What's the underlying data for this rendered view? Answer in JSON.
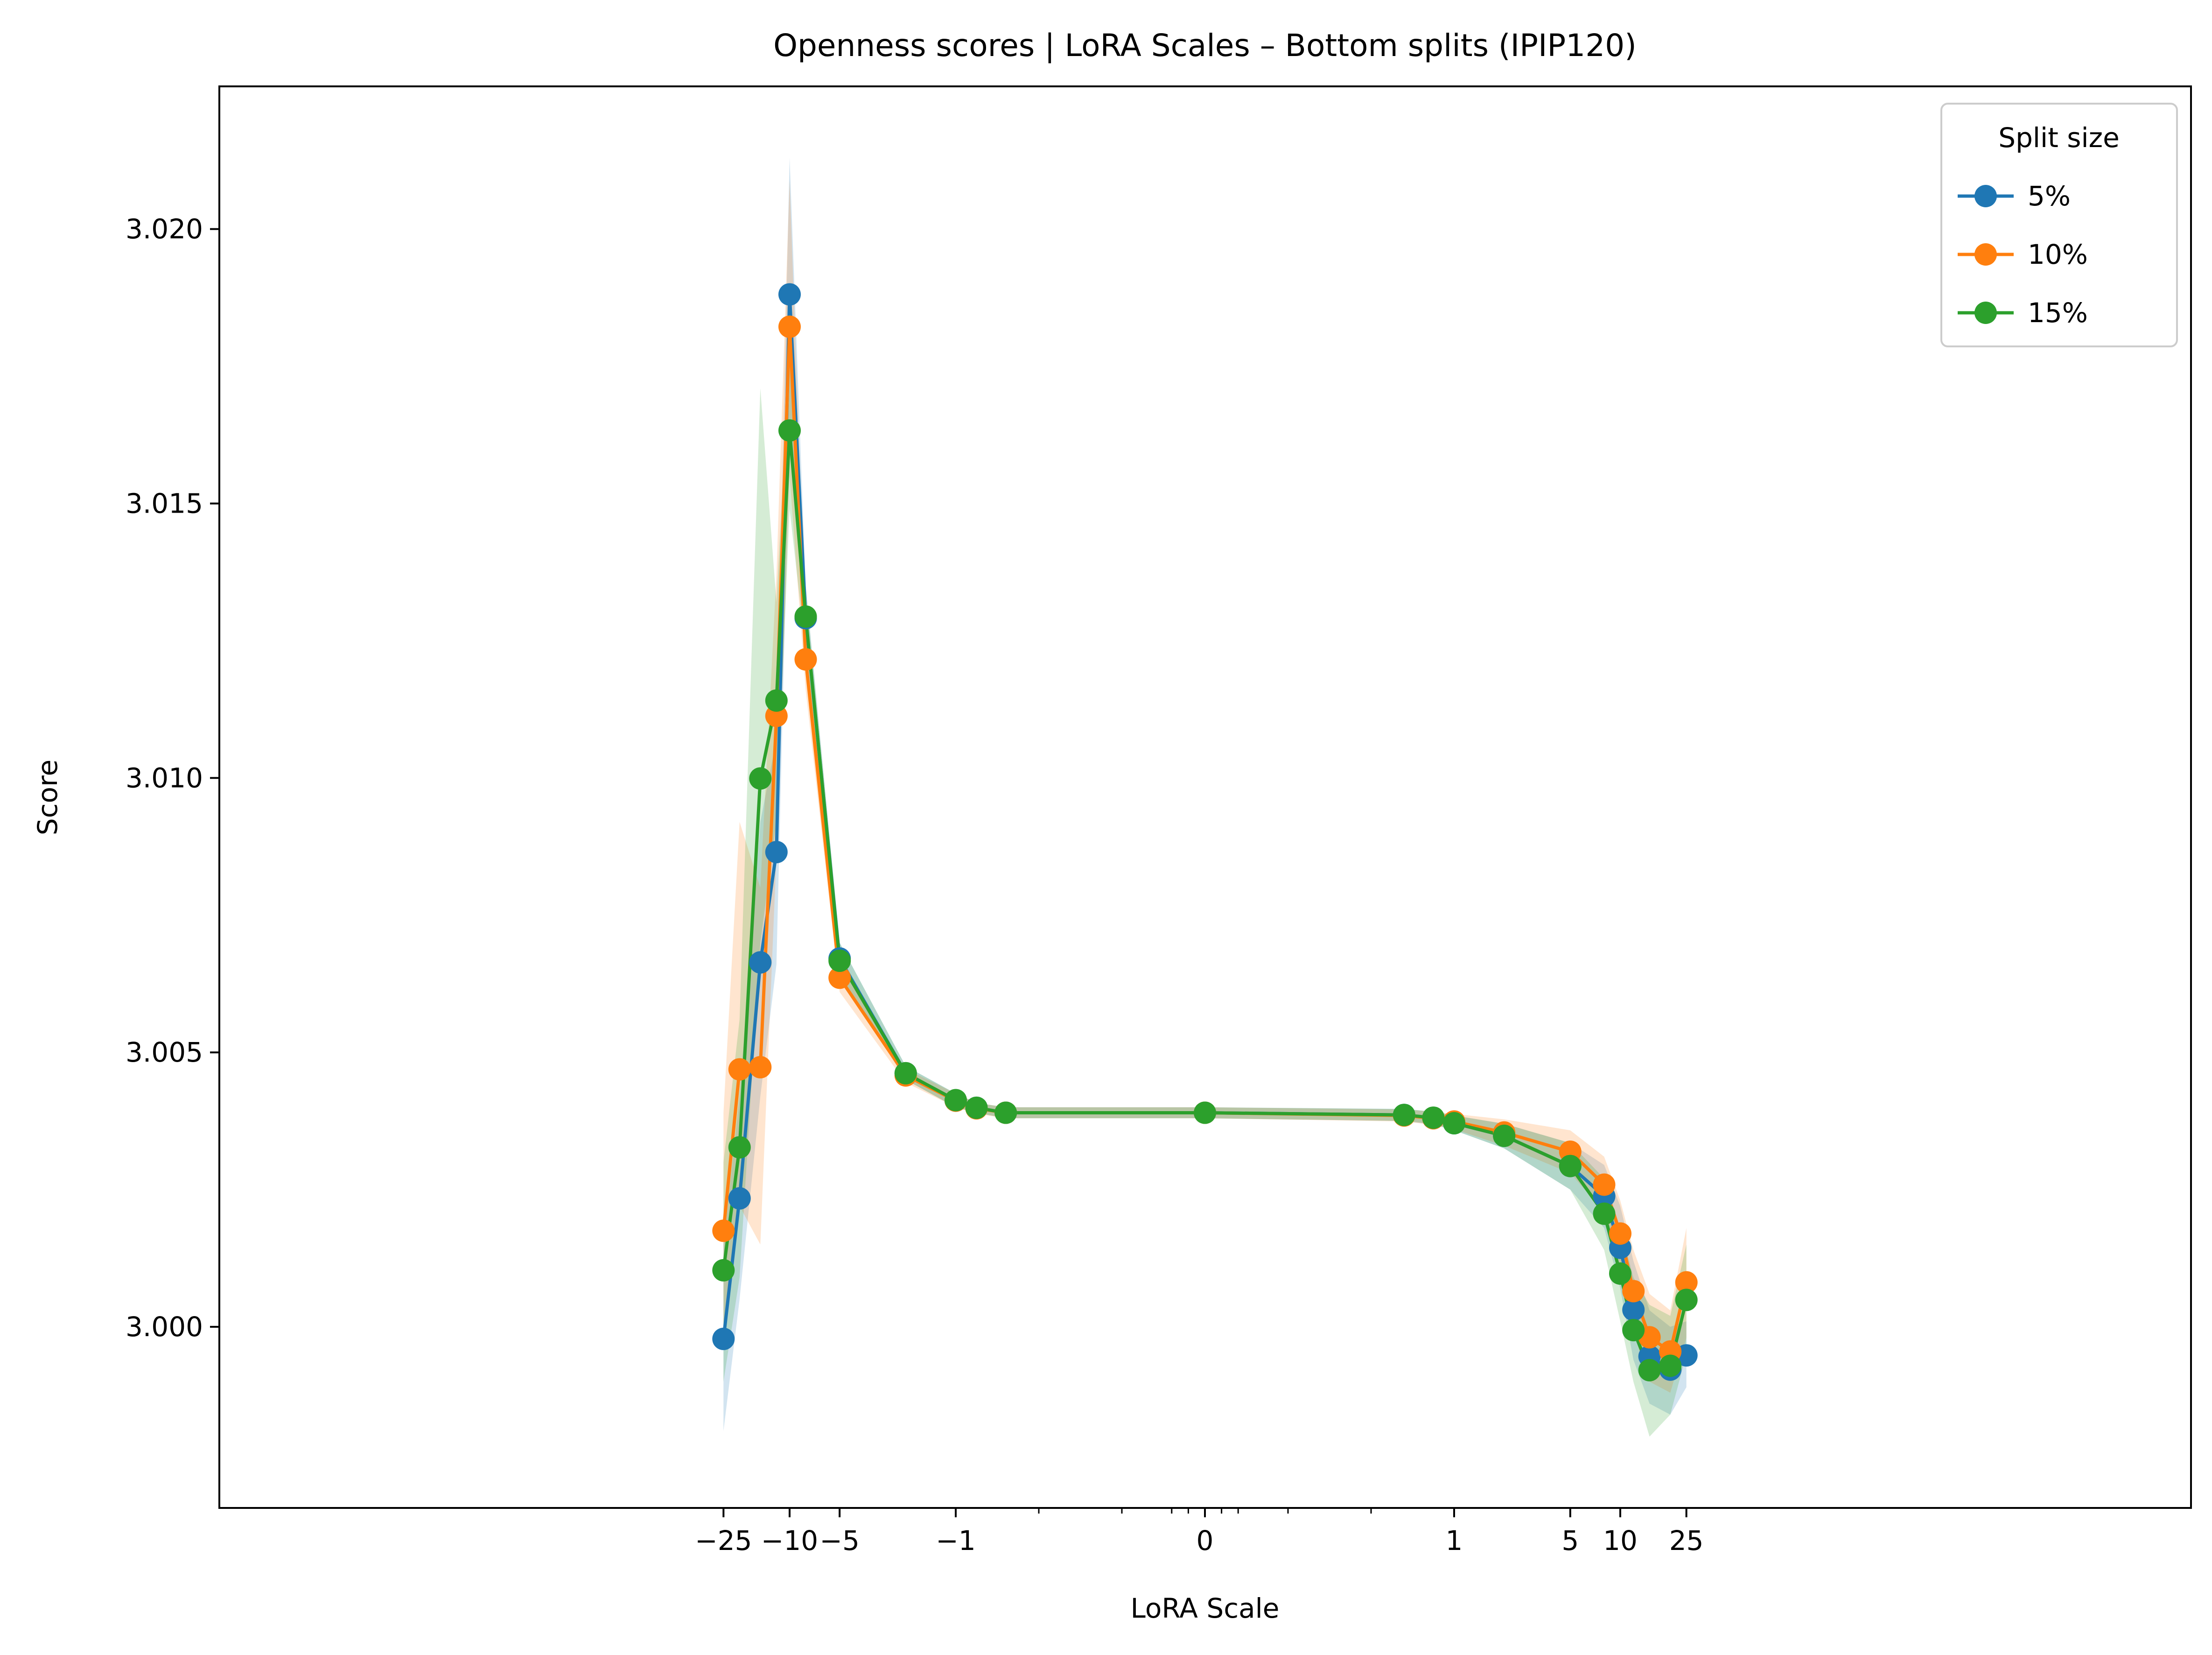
{
  "chart_data": {
    "type": "line",
    "title": "Openness scores | LoRA Scales – Bottom splits (IPIP120)",
    "xlabel": "LoRA Scale",
    "ylabel": "Score",
    "x_scale": "symlog",
    "x_ticks": [
      {
        "value": -25,
        "label": "−25"
      },
      {
        "value": -10,
        "label": "−10"
      },
      {
        "value": -5,
        "label": "−5"
      },
      {
        "value": -1,
        "label": "−1"
      },
      {
        "value": 0,
        "label": "0"
      },
      {
        "value": 1,
        "label": "1"
      },
      {
        "value": 5,
        "label": "5"
      },
      {
        "value": 10,
        "label": "10"
      },
      {
        "value": 25,
        "label": "25"
      }
    ],
    "ylim": [
      2.9967,
      3.0226
    ],
    "y_ticks": [
      {
        "value": 3.0,
        "label": "3.000"
      },
      {
        "value": 3.005,
        "label": "3.005"
      },
      {
        "value": 3.01,
        "label": "3.010"
      },
      {
        "value": 3.015,
        "label": "3.015"
      },
      {
        "value": 3.02,
        "label": "3.020"
      }
    ],
    "legend": {
      "title": "Split size",
      "placement": "top-right"
    },
    "grid": false,
    "x": [
      -25,
      -20,
      -15,
      -12,
      -10,
      -8,
      -5,
      -2,
      -1,
      -0.75,
      -0.5,
      0,
      0.5,
      0.75,
      1,
      2,
      5,
      8,
      10,
      12,
      15,
      20,
      25
    ],
    "series": [
      {
        "name": "5%",
        "color": "#1f77b4",
        "values": [
          2.99978,
          3.00234,
          3.00664,
          3.00865,
          3.01881,
          3.01291,
          3.00671,
          3.00462,
          3.00412,
          3.00399,
          3.0039,
          3.0039,
          3.00386,
          3.0038,
          3.00371,
          3.00348,
          3.00293,
          3.00238,
          3.00144,
          3.00031,
          2.99946,
          2.99922,
          2.99948
        ],
        "band_lower": [
          2.9981,
          3.0005,
          3.0042,
          3.0066,
          3.0164,
          3.0123,
          3.0064,
          3.0045,
          3.004,
          3.0039,
          3.0038,
          3.0038,
          3.00375,
          3.00368,
          3.00358,
          3.00325,
          3.0025,
          3.0018,
          3.0007,
          2.9994,
          2.9986,
          2.9984,
          2.9989
        ],
        "band_upper": [
          3.0015,
          3.0042,
          3.0092,
          3.0107,
          3.0213,
          3.0135,
          3.007,
          3.00475,
          3.00425,
          3.00408,
          3.004,
          3.004,
          3.00397,
          3.00392,
          3.00385,
          3.0037,
          3.00335,
          3.00295,
          3.0022,
          3.0012,
          3.0003,
          3.0,
          3.0001
        ]
      },
      {
        "name": "10%",
        "color": "#ff7f0e",
        "values": [
          3.00175,
          3.00469,
          3.00473,
          3.01113,
          3.01822,
          3.01216,
          3.00636,
          3.00458,
          3.00412,
          3.00398,
          3.0039,
          3.0039,
          3.00385,
          3.0038,
          3.00374,
          3.00354,
          3.00319,
          3.00259,
          3.0017,
          3.00065,
          2.99981,
          2.99955,
          3.00081
        ],
        "band_lower": [
          2.9996,
          3.0022,
          3.0015,
          3.0086,
          3.0155,
          3.0116,
          3.0061,
          3.00445,
          3.004,
          3.00388,
          3.0038,
          3.0038,
          3.00374,
          3.00368,
          3.0036,
          3.0033,
          3.0028,
          3.0021,
          3.0011,
          2.9999,
          2.999,
          2.9988,
          2.9998
        ],
        "band_upper": [
          3.0039,
          3.0092,
          3.008,
          3.0137,
          3.0209,
          3.0127,
          3.0066,
          3.0047,
          3.00425,
          3.00408,
          3.004,
          3.004,
          3.00396,
          3.00392,
          3.00388,
          3.00378,
          3.00358,
          3.0031,
          3.0023,
          3.0014,
          3.0006,
          3.0003,
          3.0018
        ]
      },
      {
        "name": "15%",
        "color": "#2ca02c",
        "values": [
          3.00103,
          3.00327,
          3.00999,
          3.01141,
          3.01633,
          3.01294,
          3.00667,
          3.00462,
          3.00413,
          3.00399,
          3.0039,
          3.0039,
          3.00386,
          3.00381,
          3.00371,
          3.00348,
          3.00293,
          3.00206,
          3.00097,
          2.99994,
          2.99921,
          2.99929,
          3.00049
        ],
        "band_lower": [
          2.999,
          3.0009,
          3.007,
          3.0092,
          3.0149,
          3.0123,
          3.0064,
          3.0045,
          3.004,
          3.0039,
          3.0038,
          3.0038,
          3.00375,
          3.0037,
          3.00358,
          3.00325,
          3.0025,
          3.0014,
          3.0001,
          2.999,
          2.998,
          2.9984,
          2.9995
        ],
        "band_upper": [
          3.003,
          3.0056,
          3.0171,
          3.0132,
          3.0178,
          3.0135,
          3.007,
          3.00475,
          3.00425,
          3.00408,
          3.004,
          3.004,
          3.00397,
          3.00392,
          3.00385,
          3.0037,
          3.00335,
          3.0027,
          3.0018,
          3.0009,
          3.0004,
          3.0002,
          3.0015
        ]
      }
    ]
  }
}
